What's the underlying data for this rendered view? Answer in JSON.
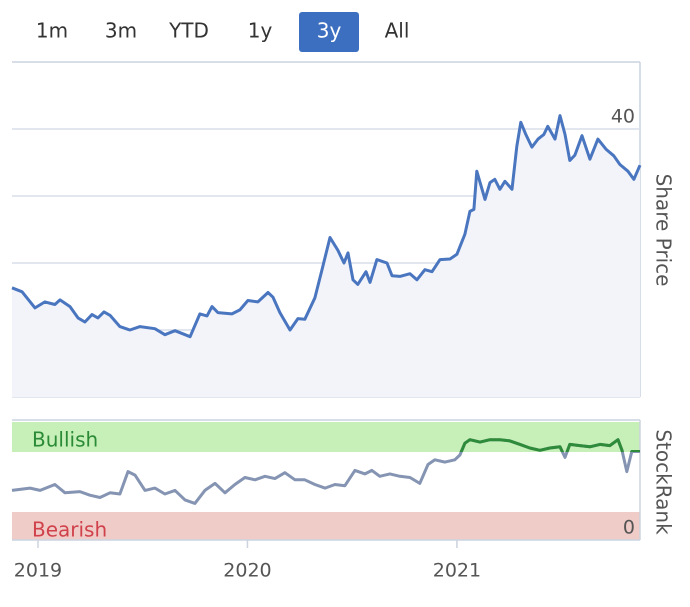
{
  "range_buttons": [
    "1m",
    "3m",
    "YTD",
    "1y",
    "3y",
    "All"
  ],
  "selected_button": 4,
  "chart_data": [
    {
      "type": "line",
      "y_label": "Share Price",
      "color": "#4a76c0",
      "area_color": "#f3f4fa",
      "xlim": [
        2018.876,
        2021.874
      ],
      "ylim": [
        0,
        50
      ],
      "yticks": [
        0,
        10,
        20,
        30,
        40
      ],
      "grid": true,
      "x": [
        2018.876,
        2018.924,
        2018.986,
        2019.033,
        2019.081,
        2019.105,
        2019.153,
        2019.191,
        2019.224,
        2019.258,
        2019.286,
        2019.315,
        2019.344,
        2019.391,
        2019.439,
        2019.487,
        2019.558,
        2019.606,
        2019.654,
        2019.726,
        2019.773,
        2019.807,
        2019.831,
        2019.859,
        2019.926,
        2019.964,
        2020.002,
        2020.05,
        2020.098,
        2020.122,
        2020.155,
        2020.203,
        2020.241,
        2020.274,
        2020.322,
        2020.356,
        2020.394,
        2020.432,
        2020.461,
        2020.48,
        2020.504,
        2020.527,
        2020.566,
        2020.585,
        2020.618,
        2020.666,
        2020.69,
        2020.728,
        2020.776,
        2020.809,
        2020.847,
        2020.881,
        2020.919,
        2020.967,
        2021.0,
        2021.038,
        2021.062,
        2021.081,
        2021.095,
        2021.134,
        2021.158,
        2021.181,
        2021.205,
        2021.229,
        2021.263,
        2021.286,
        2021.305,
        2021.329,
        2021.358,
        2021.387,
        2021.415,
        2021.434,
        2021.468,
        2021.492,
        2021.516,
        2021.539,
        2021.563,
        2021.597,
        2021.635,
        2021.673,
        2021.711,
        2021.749,
        2021.778,
        2021.816,
        2021.845,
        2021.874
      ],
      "values": [
        16.3,
        15.7,
        13.3,
        14.2,
        13.8,
        14.5,
        13.5,
        11.8,
        11.2,
        12.3,
        11.8,
        12.7,
        12.2,
        10.5,
        10.0,
        10.5,
        10.2,
        9.3,
        9.9,
        9.0,
        12.4,
        12.1,
        13.5,
        12.6,
        12.4,
        13.0,
        14.4,
        14.2,
        15.6,
        14.9,
        12.6,
        10.0,
        11.7,
        11.6,
        14.8,
        19.0,
        23.8,
        21.9,
        20.0,
        21.5,
        17.5,
        16.8,
        18.7,
        17.1,
        20.5,
        20.0,
        18.1,
        18.0,
        18.4,
        17.5,
        19.0,
        18.7,
        20.5,
        20.6,
        21.3,
        24.3,
        27.7,
        28.0,
        33.7,
        29.5,
        32.0,
        32.5,
        31.0,
        32.2,
        31.0,
        37.4,
        41.0,
        39.2,
        37.3,
        38.5,
        39.2,
        40.4,
        38.5,
        42.0,
        39.2,
        35.3,
        36.1,
        39.0,
        35.5,
        38.5,
        37.0,
        36.0,
        34.7,
        33.7,
        32.5,
        34.6
      ]
    },
    {
      "type": "line",
      "y_label": "StockRank",
      "color": "#8494b2",
      "highlight_color": "#2e8b3a",
      "annotations": [
        "Bullish",
        "Bearish"
      ],
      "xlim": [
        2018.876,
        2021.874
      ],
      "xticks": [
        2019,
        2020,
        2021
      ],
      "ylim": [
        0,
        100
      ],
      "yticks": [
        0
      ],
      "x": [
        2018.876,
        2018.962,
        2019.01,
        2019.081,
        2019.129,
        2019.2,
        2019.248,
        2019.296,
        2019.344,
        2019.391,
        2019.43,
        2019.463,
        2019.511,
        2019.558,
        2019.606,
        2019.654,
        2019.702,
        2019.749,
        2019.797,
        2019.845,
        2019.893,
        2019.94,
        2019.988,
        2020.036,
        2020.084,
        2020.131,
        2020.179,
        2020.227,
        2020.274,
        2020.322,
        2020.37,
        2020.418,
        2020.465,
        2020.513,
        2020.561,
        2020.594,
        2020.632,
        2020.68,
        2020.728,
        2020.776,
        2020.823,
        2020.862,
        2020.895,
        2020.943,
        2020.99,
        2021.014,
        2021.038,
        2021.062,
        2021.11,
        2021.158,
        2021.205,
        2021.253,
        2021.301,
        2021.348,
        2021.396,
        2021.444,
        2021.492,
        2021.516,
        2021.539,
        2021.587,
        2021.635,
        2021.683,
        2021.73,
        2021.769,
        2021.788,
        2021.811,
        2021.835,
        2021.874
      ],
      "values": [
        42,
        44,
        42,
        47,
        40,
        41,
        38,
        36,
        40,
        39,
        58,
        55,
        42,
        44,
        39,
        42,
        34,
        31,
        42,
        48,
        40,
        47,
        53,
        51,
        54,
        52,
        57,
        51,
        51,
        47,
        44,
        47,
        46,
        59,
        56,
        59,
        54,
        56,
        54,
        53,
        48,
        64,
        68,
        66,
        68,
        72,
        82,
        85,
        83,
        85,
        85,
        84,
        81,
        78,
        76,
        78,
        79,
        70,
        81,
        80,
        79,
        81,
        80,
        85,
        76,
        58,
        75,
        75
      ]
    }
  ]
}
